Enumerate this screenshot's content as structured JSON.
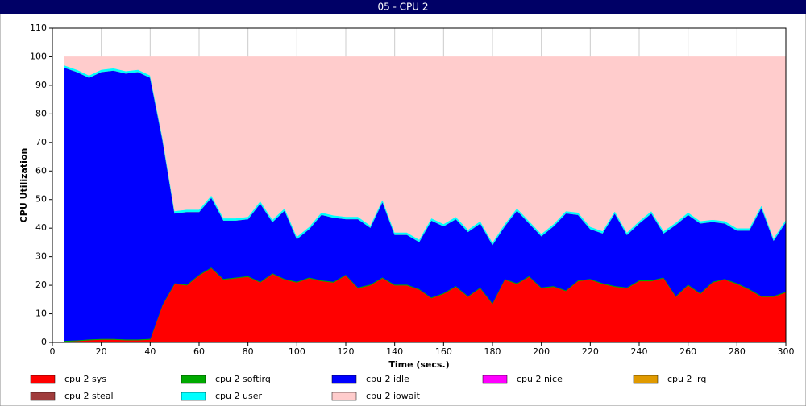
{
  "chart_data": {
    "type": "stacked-area",
    "title": "05 - CPU 2",
    "xlabel": "Time (secs.)",
    "ylabel": "CPU Utilization",
    "x": [
      5,
      10,
      15,
      20,
      25,
      30,
      35,
      40,
      45,
      50,
      55,
      60,
      65,
      70,
      75,
      80,
      85,
      90,
      95,
      100,
      105,
      110,
      115,
      120,
      125,
      130,
      135,
      140,
      145,
      150,
      155,
      160,
      165,
      170,
      175,
      180,
      185,
      190,
      195,
      200,
      205,
      210,
      215,
      220,
      225,
      230,
      235,
      240,
      245,
      250,
      255,
      260,
      265,
      270,
      275,
      280,
      285,
      290,
      295,
      300
    ],
    "xlim": [
      0,
      300
    ],
    "xticks": [
      0,
      20,
      40,
      60,
      80,
      100,
      120,
      140,
      160,
      180,
      200,
      220,
      240,
      260,
      280,
      300
    ],
    "ylim": [
      0,
      110
    ],
    "yticks": [
      0,
      10,
      20,
      30,
      40,
      50,
      60,
      70,
      80,
      90,
      100,
      110
    ],
    "grid": "x",
    "series": [
      {
        "name": "cpu 2 sys",
        "color": "#ff0000",
        "values": [
          0.3,
          0.5,
          0.8,
          1,
          1,
          0.8,
          0.8,
          1,
          13,
          20.5,
          20,
          23.5,
          26,
          22,
          22.5,
          23,
          21,
          24,
          22,
          21,
          22.5,
          21.5,
          21,
          23.5,
          19,
          20,
          22.5,
          20,
          20,
          18.5,
          15.5,
          17,
          19.5,
          16,
          19,
          13.5,
          22,
          20.5,
          23,
          19,
          19.5,
          18,
          21.5,
          22,
          20.5,
          19.5,
          19,
          21.5,
          21.5,
          22.5,
          16,
          20,
          17,
          21,
          22,
          20.5,
          18.5,
          16,
          16,
          17.5
        ]
      },
      {
        "name": "cpu 2 softirq",
        "color": "#00aa00",
        "values": [
          0.3,
          0.3,
          0.3,
          0.3,
          0.3,
          0.3,
          0.3,
          0.3,
          0.3,
          0.3,
          0.3,
          0.3,
          0.3,
          0.3,
          0.3,
          0.3,
          0.3,
          0.3,
          0.3,
          0.3,
          0.3,
          0.3,
          0.3,
          0.3,
          0.3,
          0.3,
          0.3,
          0.3,
          0.3,
          0.3,
          0.3,
          0.3,
          0.3,
          0.3,
          0.3,
          0.3,
          0.3,
          0.3,
          0.3,
          0.3,
          0.3,
          0.3,
          0.3,
          0.3,
          0.3,
          0.3,
          0.3,
          0.3,
          0.3,
          0.3,
          0.3,
          0.3,
          0.3,
          0.3,
          0.3,
          0.3,
          0.3,
          0.3,
          0.3,
          0.3
        ]
      },
      {
        "name": "cpu 2 idle",
        "color": "#0000ff",
        "values": [
          95.6,
          93.9,
          91.6,
          93.4,
          93.9,
          93.1,
          93.6,
          91.4,
          57.9,
          24.4,
          25.4,
          21.9,
          24.4,
          20.4,
          19.9,
          19.9,
          27.4,
          17.9,
          23.9,
          14.9,
          16.9,
          22.9,
          22.4,
          19.4,
          23.9,
          19.9,
          26.4,
          17.4,
          17.4,
          16.4,
          26.9,
          23.4,
          23.4,
          22.4,
          22.4,
          20.4,
          18.4,
          25.4,
          18.4,
          17.9,
          20.9,
          26.9,
          22.9,
          17.4,
          17.4,
          25.4,
          18.4,
          19.9,
          23.4,
          15.4,
          24.9,
          24.4,
          24.4,
          20.9,
          19.4,
          18.4,
          20.4,
          30.9,
          19.4,
          24.4
        ]
      },
      {
        "name": "cpu 2 nice",
        "color": "#ff00ff",
        "values": [
          0,
          0,
          0,
          0,
          0,
          0,
          0,
          0,
          0,
          0,
          0,
          0,
          0,
          0,
          0,
          0,
          0,
          0,
          0,
          0,
          0,
          0,
          0,
          0,
          0,
          0,
          0,
          0,
          0,
          0,
          0,
          0,
          0,
          0,
          0,
          0,
          0,
          0,
          0,
          0,
          0,
          0,
          0,
          0,
          0,
          0,
          0,
          0,
          0,
          0,
          0,
          0,
          0,
          0,
          0,
          0,
          0,
          0,
          0,
          0
        ]
      },
      {
        "name": "cpu 2 irq",
        "color": "#e09a00",
        "values": [
          0,
          0,
          0,
          0,
          0,
          0,
          0,
          0,
          0,
          0,
          0,
          0,
          0,
          0,
          0,
          0,
          0,
          0,
          0,
          0,
          0,
          0,
          0,
          0,
          0,
          0,
          0,
          0,
          0,
          0,
          0,
          0,
          0,
          0,
          0,
          0,
          0,
          0,
          0,
          0,
          0,
          0,
          0,
          0,
          0,
          0,
          0,
          0,
          0,
          0,
          0,
          0,
          0,
          0,
          0,
          0,
          0,
          0,
          0,
          0
        ]
      },
      {
        "name": "cpu 2 steal",
        "color": "#a03c3c",
        "values": [
          0,
          0,
          0,
          0,
          0,
          0,
          0,
          0,
          0,
          0,
          0,
          0,
          0,
          0,
          0,
          0,
          0,
          0,
          0,
          0,
          0,
          0,
          0,
          0,
          0,
          0,
          0,
          0,
          0,
          0,
          0,
          0,
          0,
          0,
          0,
          0,
          0,
          0,
          0,
          0,
          0,
          0,
          0,
          0,
          0,
          0,
          0,
          0,
          0,
          0,
          0,
          0,
          0,
          0,
          0,
          0,
          0,
          0,
          0,
          0
        ]
      },
      {
        "name": "cpu 2 user",
        "color": "#00ffff",
        "values": [
          0.8,
          0.8,
          0.8,
          0.8,
          0.8,
          0.8,
          0.8,
          0.8,
          0.8,
          0.8,
          0.8,
          0.8,
          0.8,
          0.8,
          0.8,
          0.8,
          0.8,
          0.8,
          0.8,
          0.8,
          0.8,
          0.8,
          0.8,
          0.8,
          0.8,
          0.8,
          0.8,
          0.8,
          0.8,
          0.8,
          0.8,
          0.8,
          0.8,
          0.8,
          0.8,
          0.8,
          0.8,
          0.8,
          0.8,
          0.8,
          0.8,
          0.8,
          0.8,
          0.8,
          0.8,
          0.8,
          0.8,
          0.8,
          0.8,
          0.8,
          0.8,
          0.8,
          0.8,
          0.8,
          0.8,
          0.8,
          0.8,
          0.8,
          0.8,
          0.8
        ]
      },
      {
        "name": "cpu 2 iowait",
        "color": "#ffcccc",
        "values": [
          3,
          4.5,
          6.5,
          4.5,
          4,
          5,
          4.5,
          6.5,
          28,
          54,
          53.5,
          53.5,
          48.5,
          56.5,
          56.5,
          56,
          50.5,
          57,
          53,
          63,
          59.5,
          54.5,
          55.5,
          56,
          56,
          59,
          50,
          61.5,
          61.5,
          64,
          56.5,
          58.5,
          56,
          60.5,
          57.5,
          65,
          58.5,
          53,
          57.5,
          62,
          58.5,
          54,
          54.5,
          59.5,
          61,
          54,
          61.5,
          57.5,
          54,
          61,
          58,
          54.5,
          57.5,
          57,
          57.5,
          60,
          60,
          52,
          63.5,
          57
        ]
      }
    ]
  }
}
